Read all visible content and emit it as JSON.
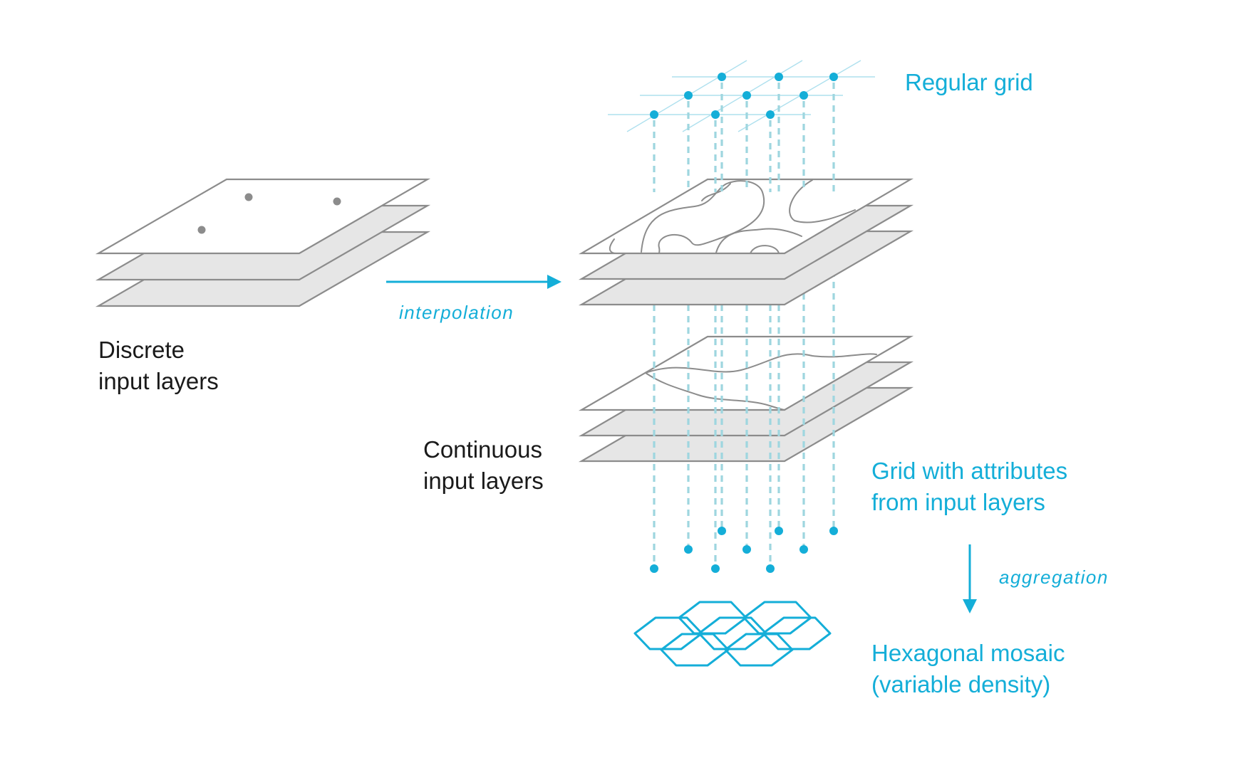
{
  "labels": {
    "discrete": [
      "Discrete",
      "input layers"
    ],
    "continuous": [
      "Continuous",
      "input layers"
    ],
    "regular_grid": "Regular grid",
    "grid_attributes": [
      "Grid with attributes",
      "from input layers"
    ],
    "hexagonal": [
      "Hexagonal mosaic",
      "(variable density)"
    ],
    "interpolation": "interpolation",
    "aggregation": "aggregation"
  },
  "colors": {
    "accent": "#14aed8",
    "dashed": "#9ed6df",
    "layer_stroke": "#8c8c8c",
    "layer_fill": "#e6e6e6",
    "text": "#1a1a1a"
  }
}
